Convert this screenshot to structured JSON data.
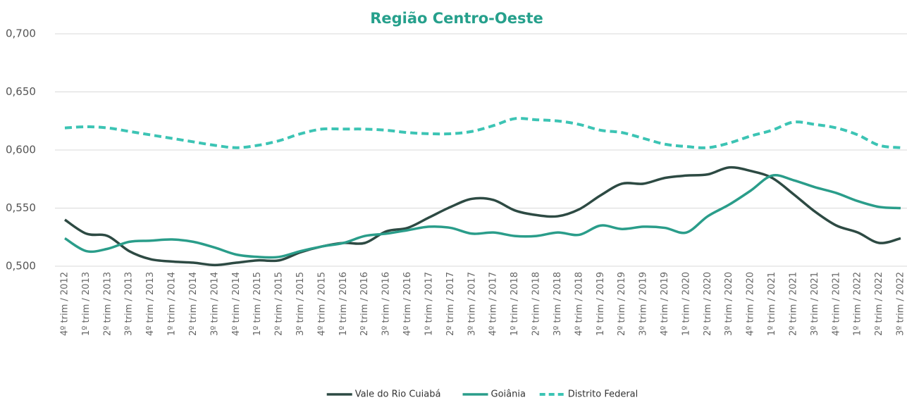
{
  "chart_data": {
    "type": "line",
    "title": "Região Centro-Oeste",
    "categories": [
      "4º trim / 2012",
      "1º trim / 2013",
      "2º trim / 2013",
      "3º trim / 2013",
      "4º trim / 2013",
      "1º trim / 2014",
      "2º trim / 2014",
      "3º trim / 2014",
      "4º trim / 2014",
      "1º trim / 2015",
      "2º trim / 2015",
      "3º trim / 2015",
      "4º trim / 2015",
      "1º trim / 2016",
      "2º trim / 2016",
      "3º trim / 2016",
      "4º trim / 2016",
      "1º trim / 2017",
      "2º trim / 2017",
      "3º trim / 2017",
      "4º trim / 2017",
      "1º trim / 2018",
      "2º trim / 2018",
      "3º trim / 2018",
      "4º trim / 2018",
      "1º trim / 2019",
      "2º trim / 2019",
      "3º trim / 2019",
      "4º trim / 2019",
      "1º trim / 2020",
      "2º trim / 2020",
      "3º trim / 2020",
      "4º trim / 2020",
      "1º trim / 2021",
      "2º trim / 2021",
      "3º trim / 2021",
      "4º trim / 2021",
      "1º trim / 2022",
      "2º trim / 2022",
      "3º trim / 2022"
    ],
    "series": [
      {
        "name": "Vale do Rio Cuiabá",
        "color": "#2d4a43",
        "line_style": "solid",
        "values": [
          0.54,
          0.528,
          0.526,
          0.513,
          0.506,
          0.504,
          0.503,
          0.501,
          0.503,
          0.505,
          0.505,
          0.512,
          0.517,
          0.52,
          0.52,
          0.53,
          0.533,
          0.542,
          0.551,
          0.558,
          0.557,
          0.548,
          0.544,
          0.543,
          0.549,
          0.561,
          0.571,
          0.571,
          0.576,
          0.578,
          0.579,
          0.585,
          0.582,
          0.576,
          0.562,
          0.547,
          0.535,
          0.529,
          0.52,
          0.524
        ]
      },
      {
        "name": "Goiânia",
        "color": "#2a9d8a",
        "line_style": "solid",
        "values": [
          0.524,
          0.513,
          0.515,
          0.521,
          0.522,
          0.523,
          0.521,
          0.516,
          0.51,
          0.508,
          0.508,
          0.513,
          0.517,
          0.52,
          0.526,
          0.528,
          0.531,
          0.534,
          0.533,
          0.528,
          0.529,
          0.526,
          0.526,
          0.529,
          0.527,
          0.535,
          0.532,
          0.534,
          0.533,
          0.529,
          0.543,
          0.553,
          0.565,
          0.578,
          0.574,
          0.568,
          0.563,
          0.556,
          0.551,
          0.55
        ]
      },
      {
        "name": "Distrito Federal",
        "color": "#3cc4b4",
        "line_style": "dashed",
        "values": [
          0.619,
          0.62,
          0.619,
          0.616,
          0.613,
          0.61,
          0.607,
          0.604,
          0.602,
          0.604,
          0.608,
          0.614,
          0.618,
          0.618,
          0.618,
          0.617,
          0.615,
          0.614,
          0.614,
          0.616,
          0.621,
          0.627,
          0.626,
          0.625,
          0.622,
          0.617,
          0.615,
          0.61,
          0.605,
          0.603,
          0.602,
          0.606,
          0.612,
          0.617,
          0.624,
          0.622,
          0.619,
          0.613,
          0.604,
          0.602
        ]
      }
    ],
    "ylim": [
      0.5,
      0.7
    ],
    "yticks": [
      {
        "value": 0.5,
        "label": "0,500"
      },
      {
        "value": 0.55,
        "label": "0,550"
      },
      {
        "value": 0.6,
        "label": "0,600"
      },
      {
        "value": 0.65,
        "label": "0,650"
      },
      {
        "value": 0.7,
        "label": "0,700"
      }
    ],
    "grid": true,
    "legend": "bottom"
  }
}
